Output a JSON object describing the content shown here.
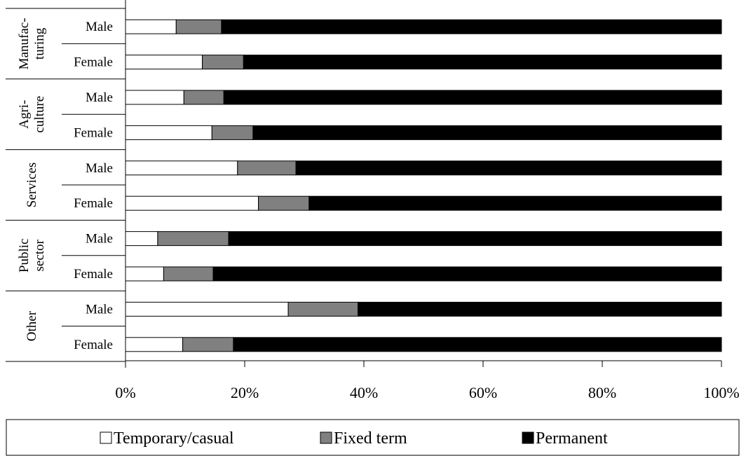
{
  "chart_data": {
    "type": "bar",
    "orientation": "horizontal",
    "stacked": true,
    "normalized": true,
    "groups": [
      {
        "label": [
          "Manufac-",
          "turing"
        ],
        "rows": [
          {
            "label": "Male",
            "values": [
              8.5,
              7.6,
              83.9
            ]
          },
          {
            "label": "Female",
            "values": [
              12.9,
              6.9,
              80.2
            ]
          }
        ]
      },
      {
        "label": [
          "Agri-",
          "culture"
        ],
        "rows": [
          {
            "label": "Male",
            "values": [
              9.8,
              6.7,
              83.5
            ]
          },
          {
            "label": "Female",
            "values": [
              14.5,
              6.9,
              78.6
            ]
          }
        ]
      },
      {
        "label": [
          "Services"
        ],
        "rows": [
          {
            "label": "Male",
            "values": [
              18.8,
              9.8,
              71.4
            ]
          },
          {
            "label": "Female",
            "values": [
              22.3,
              8.5,
              69.2
            ]
          }
        ]
      },
      {
        "label": [
          "Public",
          "sector"
        ],
        "rows": [
          {
            "label": "Male",
            "values": [
              5.4,
              11.9,
              82.7
            ]
          },
          {
            "label": "Female",
            "values": [
              6.4,
              8.3,
              85.3
            ]
          }
        ]
      },
      {
        "label": [
          "Other"
        ],
        "rows": [
          {
            "label": "Male",
            "values": [
              27.3,
              11.7,
              61.0
            ]
          },
          {
            "label": "Female",
            "values": [
              9.6,
              8.5,
              81.9
            ]
          }
        ]
      }
    ],
    "series": [
      {
        "name": "Temporary/casual",
        "color": "#ffffff"
      },
      {
        "name": "Fixed term",
        "color": "#808080"
      },
      {
        "name": "Permanent",
        "color": "#000000"
      }
    ],
    "x_ticks": [
      "0%",
      "20%",
      "40%",
      "60%",
      "80%",
      "100%"
    ],
    "xlim": [
      0,
      100
    ],
    "legend_position": "bottom",
    "grid": false
  }
}
